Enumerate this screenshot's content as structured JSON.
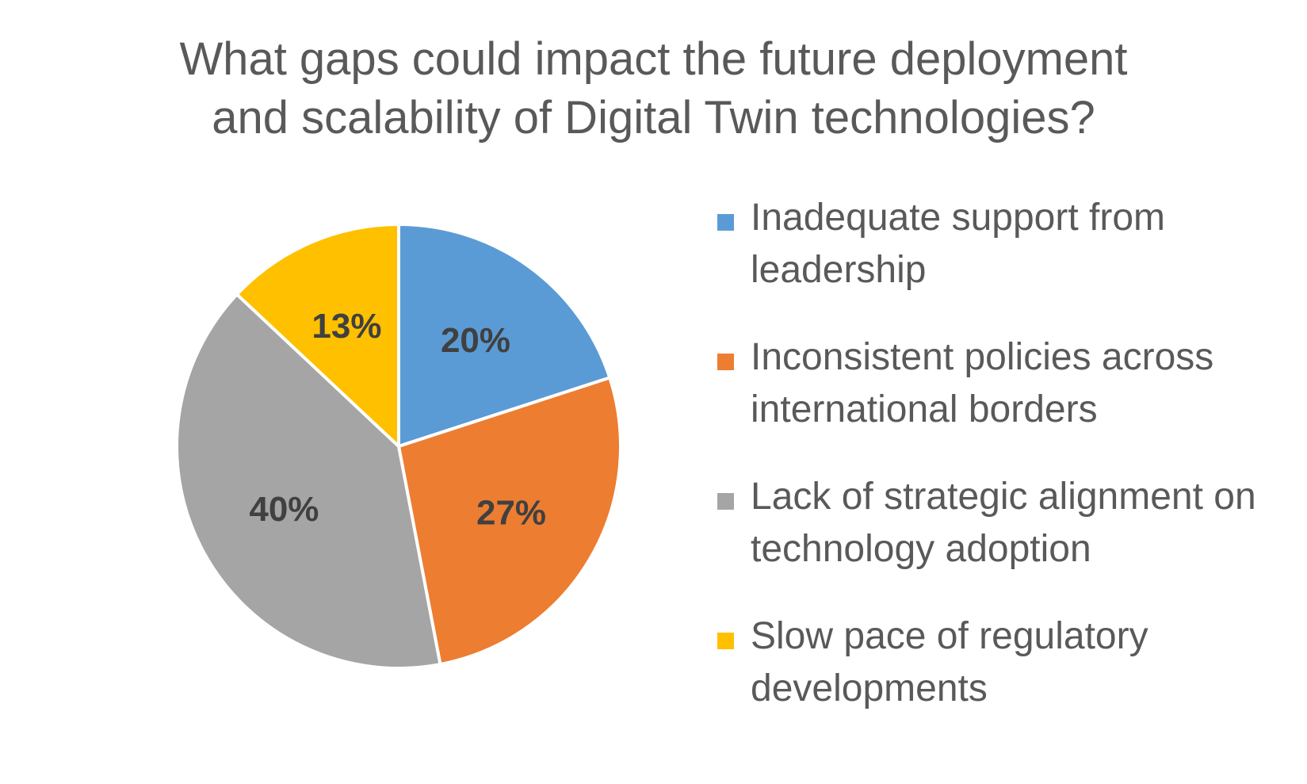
{
  "chart_data": {
    "type": "pie",
    "title_lines": [
      "What gaps could impact the future deployment",
      "and scalability of Digital Twin technologies?"
    ],
    "categories": [
      "Inadequate support from leadership",
      "Inconsistent policies across international borders",
      "Lack of strategic alignment on technology adoption",
      "Slow pace of regulatory developments"
    ],
    "legend_lines": [
      [
        "Inadequate support from",
        "leadership"
      ],
      [
        "Inconsistent policies across",
        "international borders"
      ],
      [
        "Lack of strategic alignment on",
        "technology adoption"
      ],
      [
        "Slow pace of regulatory",
        "developments"
      ]
    ],
    "values": [
      20,
      27,
      40,
      13
    ],
    "data_labels": [
      "20%",
      "27%",
      "40%",
      "13%"
    ],
    "colors": [
      "#5B9BD5",
      "#ED7D31",
      "#A5A5A5",
      "#FFC000"
    ],
    "legend_position": "right",
    "start_angle": "12 o'clock, clockwise"
  }
}
